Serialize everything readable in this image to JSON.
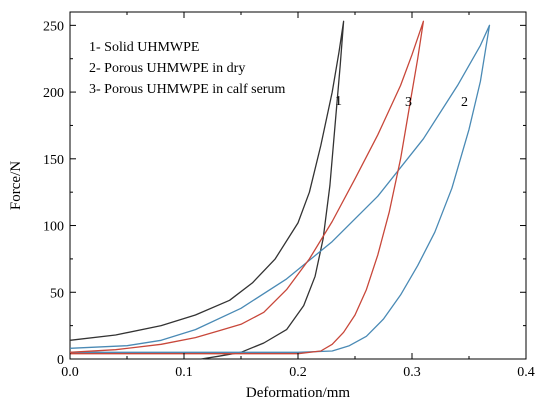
{
  "chart_data": {
    "type": "line",
    "title": "",
    "xlabel": "Deformation/mm",
    "ylabel": "Force/N",
    "xlim": [
      0.0,
      0.4
    ],
    "ylim": [
      0,
      260
    ],
    "xticks": [
      "0.0",
      "0.1",
      "0.2",
      "0.3",
      "0.4"
    ],
    "yticks": [
      "0",
      "50",
      "100",
      "150",
      "200",
      "250"
    ],
    "grid": false,
    "legend_position": "top-left",
    "legend": [
      "1- Solid UHMWPE",
      "2- Porous UHMWPE in dry",
      "3- Porous UHMWPE in calf serum"
    ],
    "curve_labels": [
      "1",
      "3",
      "2"
    ],
    "series": [
      {
        "name": "1",
        "color": "#333333",
        "loading": [
          [
            0.0,
            14
          ],
          [
            0.04,
            18
          ],
          [
            0.08,
            25
          ],
          [
            0.11,
            33
          ],
          [
            0.14,
            44
          ],
          [
            0.16,
            57
          ],
          [
            0.18,
            75
          ],
          [
            0.2,
            102
          ],
          [
            0.21,
            125
          ],
          [
            0.22,
            160
          ],
          [
            0.23,
            200
          ],
          [
            0.236,
            230
          ],
          [
            0.24,
            253
          ]
        ],
        "unloading": [
          [
            0.24,
            253
          ],
          [
            0.237,
            220
          ],
          [
            0.233,
            180
          ],
          [
            0.228,
            130
          ],
          [
            0.222,
            90
          ],
          [
            0.215,
            62
          ],
          [
            0.205,
            40
          ],
          [
            0.19,
            22
          ],
          [
            0.17,
            12
          ],
          [
            0.15,
            5
          ],
          [
            0.13,
            2
          ],
          [
            0.115,
            0
          ]
        ]
      },
      {
        "name": "2",
        "color": "#4a8ab5",
        "loading": [
          [
            0.0,
            8
          ],
          [
            0.05,
            10
          ],
          [
            0.08,
            14
          ],
          [
            0.11,
            22
          ],
          [
            0.15,
            38
          ],
          [
            0.19,
            60
          ],
          [
            0.23,
            88
          ],
          [
            0.27,
            122
          ],
          [
            0.31,
            165
          ],
          [
            0.34,
            205
          ],
          [
            0.36,
            235
          ],
          [
            0.368,
            250
          ]
        ],
        "unloading": [
          [
            0.368,
            250
          ],
          [
            0.36,
            208
          ],
          [
            0.35,
            172
          ],
          [
            0.335,
            128
          ],
          [
            0.32,
            95
          ],
          [
            0.305,
            70
          ],
          [
            0.29,
            48
          ],
          [
            0.275,
            30
          ],
          [
            0.26,
            17
          ],
          [
            0.245,
            10
          ],
          [
            0.23,
            6
          ],
          [
            0.2,
            5
          ],
          [
            0.12,
            5
          ],
          [
            0.05,
            5
          ],
          [
            0.0,
            5
          ]
        ]
      },
      {
        "name": "3",
        "color": "#c8473a",
        "loading": [
          [
            0.0,
            5
          ],
          [
            0.04,
            7
          ],
          [
            0.08,
            11
          ],
          [
            0.11,
            16
          ],
          [
            0.13,
            21
          ],
          [
            0.15,
            26
          ],
          [
            0.17,
            35
          ],
          [
            0.19,
            52
          ],
          [
            0.21,
            75
          ],
          [
            0.23,
            103
          ],
          [
            0.25,
            135
          ],
          [
            0.27,
            168
          ],
          [
            0.29,
            205
          ],
          [
            0.3,
            228
          ],
          [
            0.31,
            253
          ]
        ],
        "unloading": [
          [
            0.31,
            253
          ],
          [
            0.305,
            225
          ],
          [
            0.298,
            190
          ],
          [
            0.29,
            150
          ],
          [
            0.28,
            110
          ],
          [
            0.27,
            78
          ],
          [
            0.26,
            52
          ],
          [
            0.25,
            33
          ],
          [
            0.24,
            20
          ],
          [
            0.23,
            11
          ],
          [
            0.22,
            6
          ],
          [
            0.2,
            4
          ],
          [
            0.15,
            4
          ],
          [
            0.1,
            4
          ],
          [
            0.05,
            4
          ],
          [
            0.0,
            4
          ]
        ]
      }
    ]
  }
}
